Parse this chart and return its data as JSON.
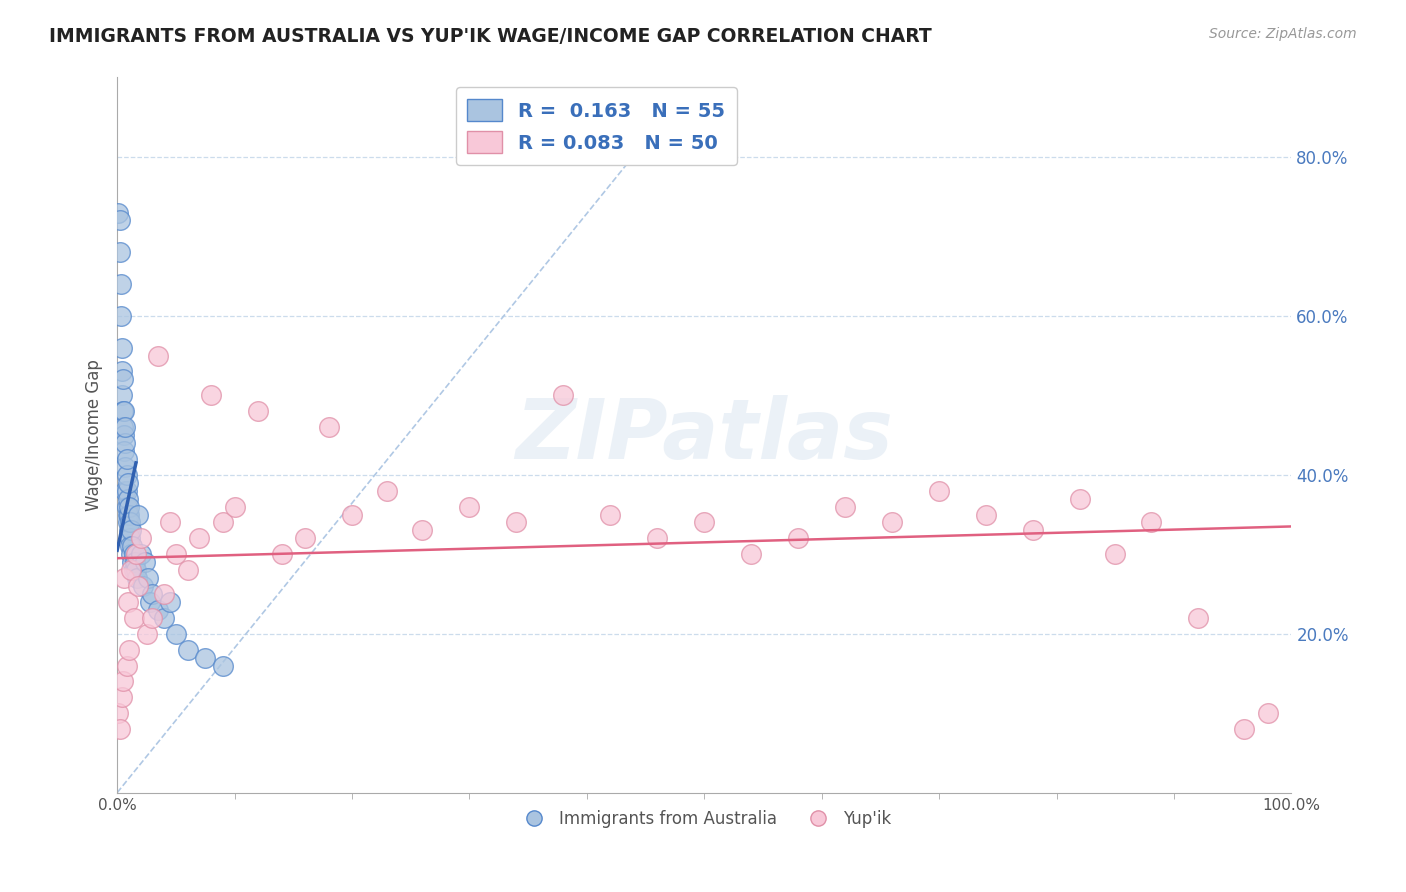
{
  "title": "IMMIGRANTS FROM AUSTRALIA VS YUP'IK WAGE/INCOME GAP CORRELATION CHART",
  "source_text": "Source: ZipAtlas.com",
  "ylabel": "Wage/Income Gap",
  "blue_color": "#aac4e0",
  "blue_edge_color": "#5588cc",
  "blue_line_color": "#3060b0",
  "pink_color": "#f8c8d8",
  "pink_edge_color": "#e090a8",
  "pink_line_color": "#e06080",
  "ref_line_color": "#b0c8e4",
  "grid_color": "#c0d4e8",
  "legend_blue_label": "R =  0.163   N = 55",
  "legend_pink_label": "R = 0.083   N = 50",
  "bottom_legend_blue": "Immigrants from Australia",
  "bottom_legend_pink": "Yup'ik",
  "watermark": "ZIPatlas",
  "xlim": [
    0.0,
    1.0
  ],
  "ylim": [
    0.0,
    0.9
  ],
  "yticks": [
    0.2,
    0.4,
    0.6,
    0.8
  ],
  "ytick_labels": [
    "20.0%",
    "40.0%",
    "60.0%",
    "80.0%"
  ],
  "xtick_positions": [
    0.0,
    1.0
  ],
  "xtick_labels": [
    "0.0%",
    "100.0%"
  ],
  "blue_scatter_x": [
    0.001,
    0.002,
    0.002,
    0.003,
    0.003,
    0.004,
    0.004,
    0.004,
    0.005,
    0.005,
    0.005,
    0.006,
    0.006,
    0.006,
    0.007,
    0.007,
    0.007,
    0.007,
    0.008,
    0.008,
    0.008,
    0.008,
    0.009,
    0.009,
    0.009,
    0.009,
    0.01,
    0.01,
    0.01,
    0.011,
    0.011,
    0.011,
    0.012,
    0.012,
    0.013,
    0.013,
    0.014,
    0.014,
    0.015,
    0.016,
    0.017,
    0.018,
    0.02,
    0.022,
    0.024,
    0.026,
    0.028,
    0.03,
    0.035,
    0.04,
    0.045,
    0.05,
    0.06,
    0.075,
    0.09
  ],
  "blue_scatter_y": [
    0.73,
    0.68,
    0.72,
    0.6,
    0.64,
    0.53,
    0.56,
    0.5,
    0.48,
    0.52,
    0.46,
    0.45,
    0.48,
    0.43,
    0.44,
    0.41,
    0.46,
    0.38,
    0.38,
    0.4,
    0.36,
    0.42,
    0.35,
    0.37,
    0.34,
    0.39,
    0.33,
    0.35,
    0.36,
    0.32,
    0.34,
    0.31,
    0.3,
    0.33,
    0.29,
    0.31,
    0.3,
    0.28,
    0.29,
    0.28,
    0.27,
    0.35,
    0.3,
    0.26,
    0.29,
    0.27,
    0.24,
    0.25,
    0.23,
    0.22,
    0.24,
    0.2,
    0.18,
    0.17,
    0.16
  ],
  "pink_scatter_x": [
    0.001,
    0.002,
    0.004,
    0.005,
    0.006,
    0.008,
    0.009,
    0.01,
    0.012,
    0.014,
    0.016,
    0.018,
    0.02,
    0.025,
    0.03,
    0.035,
    0.04,
    0.045,
    0.05,
    0.06,
    0.07,
    0.08,
    0.09,
    0.1,
    0.12,
    0.14,
    0.16,
    0.18,
    0.2,
    0.23,
    0.26,
    0.3,
    0.34,
    0.38,
    0.42,
    0.46,
    0.5,
    0.54,
    0.58,
    0.62,
    0.66,
    0.7,
    0.74,
    0.78,
    0.82,
    0.85,
    0.88,
    0.92,
    0.96,
    0.98
  ],
  "pink_scatter_y": [
    0.1,
    0.08,
    0.12,
    0.14,
    0.27,
    0.16,
    0.24,
    0.18,
    0.28,
    0.22,
    0.3,
    0.26,
    0.32,
    0.2,
    0.22,
    0.55,
    0.25,
    0.34,
    0.3,
    0.28,
    0.32,
    0.5,
    0.34,
    0.36,
    0.48,
    0.3,
    0.32,
    0.46,
    0.35,
    0.38,
    0.33,
    0.36,
    0.34,
    0.5,
    0.35,
    0.32,
    0.34,
    0.3,
    0.32,
    0.36,
    0.34,
    0.38,
    0.35,
    0.33,
    0.37,
    0.3,
    0.34,
    0.22,
    0.08,
    0.1
  ],
  "blue_trend_x": [
    0.0,
    0.016
  ],
  "blue_trend_y": [
    0.305,
    0.415
  ],
  "pink_trend_x": [
    0.0,
    1.0
  ],
  "pink_trend_y": [
    0.295,
    0.335
  ],
  "ref_line_x": [
    0.0,
    0.45
  ],
  "ref_line_y": [
    0.0,
    0.82
  ]
}
